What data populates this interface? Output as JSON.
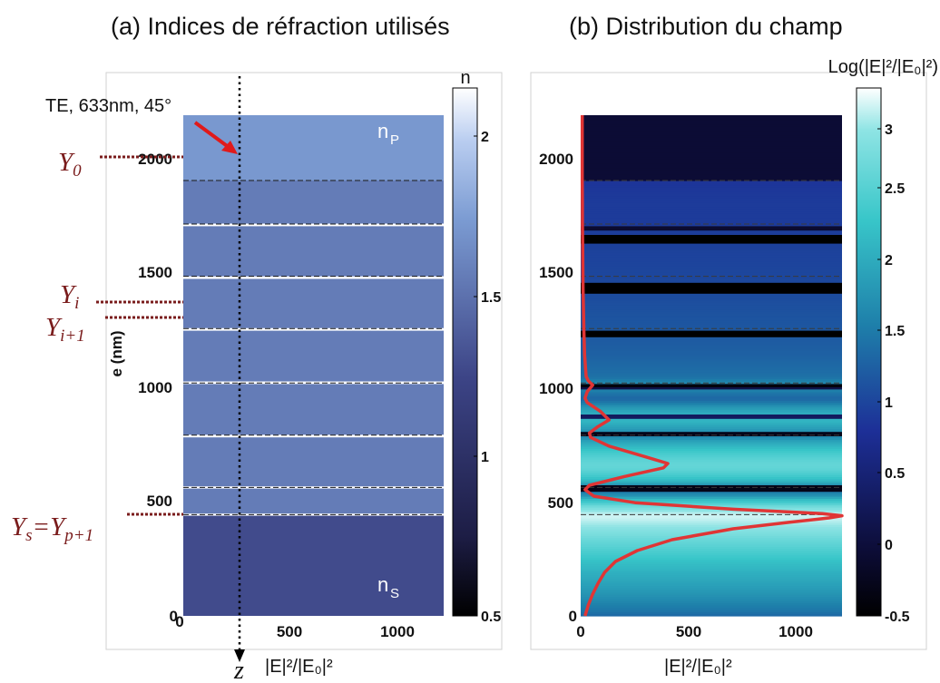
{
  "panel_a": {
    "title": "(a) Indices de réfraction utilisés",
    "annotation": "TE, 633nm, 45°",
    "n_p_main": "n",
    "n_p_sub": "P",
    "n_s_main": "n",
    "n_s_sub": "S",
    "ylabel": "e (nm)",
    "z_label": "z",
    "xlabel": "|E|²/|E₀|²",
    "colorbar_title": "n",
    "y_markers": [
      "Y0",
      "Yi",
      "Yi+1",
      "Ys=Yp+1"
    ]
  },
  "panel_b": {
    "title": "(b) Distribution du champ",
    "xlabel": "|E|²/|E₀|²",
    "colorbar_title": "Log(|E|²/|E₀|²)"
  },
  "chart_data": [
    {
      "type": "heatmap",
      "title": "(a) Indices de réfraction utilisés",
      "ylabel": "e (nm)",
      "xlim": [
        0,
        1200
      ],
      "ylim": [
        0,
        2300
      ],
      "x_ticks": [
        "0",
        "500",
        "1000"
      ],
      "y_ticks": [
        "0",
        "500",
        "1000",
        "1500",
        "2000"
      ],
      "colorbar": {
        "label": "n",
        "range": [
          0.5,
          2.15
        ],
        "ticks": [
          "0.5",
          "1",
          "1.5",
          "2"
        ]
      },
      "layers": [
        {
          "from": 0,
          "to": 460,
          "n": 1.28,
          "label": "n_S"
        },
        {
          "from": 470,
          "to": 585,
          "n": 1.56
        },
        {
          "from": 595,
          "to": 820,
          "n": 1.56
        },
        {
          "from": 832,
          "to": 1065,
          "n": 1.56
        },
        {
          "from": 1077,
          "to": 1310,
          "n": 1.56
        },
        {
          "from": 1322,
          "to": 1548,
          "n": 1.56
        },
        {
          "from": 1560,
          "to": 1790,
          "n": 1.56
        },
        {
          "from": 1802,
          "to": 2000,
          "n": 1.56
        },
        {
          "from": 2000,
          "to": 2300,
          "n": 1.72,
          "label": "n_P"
        }
      ],
      "boundaries_dashed": [
        2000,
        1800,
        1560,
        1320,
        1070,
        830,
        590,
        465
      ],
      "markers": [
        {
          "label": "Y0",
          "e": 2000
        },
        {
          "label": "Yi",
          "e": 1380
        },
        {
          "label": "Yi+1",
          "e": 1310
        },
        {
          "label": "Ys=Yp+1",
          "e": 460
        }
      ],
      "incidence": {
        "polarization": "TE",
        "wavelength_nm": 633,
        "angle_deg": 45
      }
    },
    {
      "type": "heatmap",
      "title": "(b) Distribution du champ",
      "xlabel": "|E|²/|E₀|²",
      "xlim": [
        0,
        1200
      ],
      "ylim": [
        0,
        2300
      ],
      "x_ticks": [
        "0",
        "500",
        "1000"
      ],
      "y_ticks": [
        "0",
        "500",
        "1000",
        "1500",
        "2000"
      ],
      "colorbar": {
        "label": "Log(|E|²/|E₀|²)",
        "range": [
          -0.5,
          3.2
        ],
        "ticks": [
          "-0.5",
          "0",
          "0.5",
          "1",
          "1.5",
          "2",
          "2.5",
          "3"
        ]
      },
      "field_profile": {
        "e": [
          0,
          50,
          100,
          150,
          200,
          250,
          300,
          350,
          400,
          430,
          450,
          460,
          470,
          490,
          520,
          550,
          580,
          600,
          640,
          680,
          700,
          730,
          780,
          820,
          840,
          870,
          900,
          940,
          980,
          1000,
          1030,
          1060,
          1080,
          1100,
          1200,
          1300,
          1400,
          1500,
          1600,
          1700,
          1800,
          1900,
          2000,
          2100,
          2200,
          2300
        ],
        "intensity": [
          20,
          35,
          55,
          80,
          110,
          160,
          260,
          420,
          700,
          960,
          1140,
          1200,
          1110,
          700,
          250,
          60,
          20,
          40,
          200,
          380,
          400,
          300,
          130,
          45,
          40,
          80,
          130,
          90,
          30,
          20,
          30,
          55,
          35,
          25,
          18,
          15,
          13,
          11,
          10,
          9,
          8,
          8,
          7,
          7,
          7,
          7
        ]
      },
      "dark_bands": [
        {
          "from": 1710,
          "to": 1750,
          "level": -0.5
        },
        {
          "from": 1770,
          "to": 1790,
          "level": -0.1
        },
        {
          "from": 1480,
          "to": 1530,
          "level": -0.5
        },
        {
          "from": 1280,
          "to": 1310,
          "level": -0.5
        },
        {
          "from": 1050,
          "to": 1065,
          "level": -0.4
        },
        {
          "from": 1040,
          "to": 1050,
          "level": 0.1
        },
        {
          "from": 905,
          "to": 925,
          "level": 0.3
        },
        {
          "from": 825,
          "to": 845,
          "level": -0.3
        },
        {
          "from": 570,
          "to": 600,
          "level": -0.3
        }
      ]
    }
  ]
}
